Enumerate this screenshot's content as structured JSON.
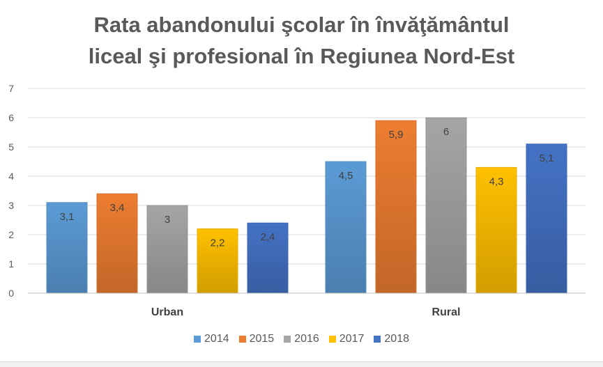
{
  "chart_data": {
    "type": "bar",
    "title_lines": [
      "Rata abandonului şcolar în învăţământul",
      "liceal şi profesional în Regiunea Nord-Est"
    ],
    "categories": [
      "Urban",
      "Rural"
    ],
    "series": [
      {
        "name": "2014",
        "values": [
          3.1,
          4.5
        ],
        "labels": [
          "3,1",
          "4,5"
        ],
        "color": "#5B9BD5"
      },
      {
        "name": "2015",
        "values": [
          3.4,
          5.9
        ],
        "labels": [
          "3,4",
          "5,9"
        ],
        "color": "#ED7D31"
      },
      {
        "name": "2016",
        "values": [
          3.0,
          6.0
        ],
        "labels": [
          "3",
          "6"
        ],
        "color": "#A5A5A5"
      },
      {
        "name": "2017",
        "values": [
          2.2,
          4.3
        ],
        "labels": [
          "2,2",
          "4,3"
        ],
        "color": "#FFC000"
      },
      {
        "name": "2018",
        "values": [
          2.4,
          5.1
        ],
        "labels": [
          "2,4",
          "5,1"
        ],
        "color": "#4472C4"
      }
    ],
    "y_ticks": [
      "0",
      "1",
      "2",
      "3",
      "4",
      "5",
      "6",
      "7"
    ],
    "ylim": [
      0,
      7
    ],
    "grid": true,
    "legend_position": "bottom",
    "xlabel": "",
    "ylabel": ""
  }
}
